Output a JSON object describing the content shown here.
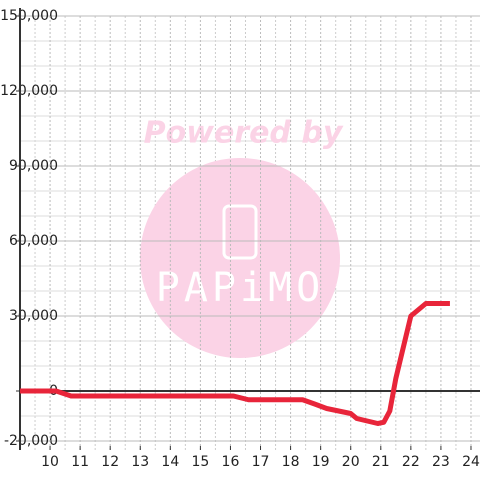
{
  "chart_data": {
    "type": "line",
    "watermark": {
      "title": "Powered by",
      "brand": "PAPiMO"
    },
    "x": [
      9,
      10.2,
      10.7,
      16.1,
      16.6,
      18.4,
      18.8,
      19.2,
      20,
      20.2,
      20.9,
      21.1,
      21.3,
      21.5,
      21.7,
      22,
      22.5,
      22.7,
      23.3
    ],
    "series": [
      {
        "color": "#e8253a",
        "values": [
          0,
          0,
          -2000,
          -2000,
          -3500,
          -3500,
          -5200,
          -7000,
          -9000,
          -11000,
          -13000,
          -12500,
          -8000,
          5000,
          15000,
          30000,
          35000,
          35000,
          35000
        ]
      }
    ],
    "xlim": [
      9,
      24.3
    ],
    "xticks": [
      10,
      11,
      12,
      13,
      14,
      15,
      16,
      17,
      18,
      19,
      20,
      21,
      22,
      23,
      24
    ],
    "xminor": [
      9.5,
      10.5,
      11.5,
      12.5,
      13.5,
      14.5,
      15.5,
      16.5,
      17.5,
      18.5,
      19.5,
      20.5,
      21.5,
      22.5,
      23.5
    ],
    "ylim": [
      -23600,
      150000
    ],
    "yticks": [
      {
        "value": -20000,
        "label": "-20,000"
      },
      0,
      {
        "value": 30000,
        "label": "30,000"
      },
      {
        "value": 60000,
        "label": "60,000"
      },
      {
        "value": 90000,
        "label": "90,000"
      },
      {
        "value": 120000,
        "label": "120,000"
      },
      {
        "value": 150000,
        "label": "150,000"
      }
    ],
    "yminor": [
      -10000,
      10000,
      20000,
      40000,
      50000,
      70000,
      80000,
      100000,
      110000,
      130000,
      140000
    ],
    "grid": true
  }
}
